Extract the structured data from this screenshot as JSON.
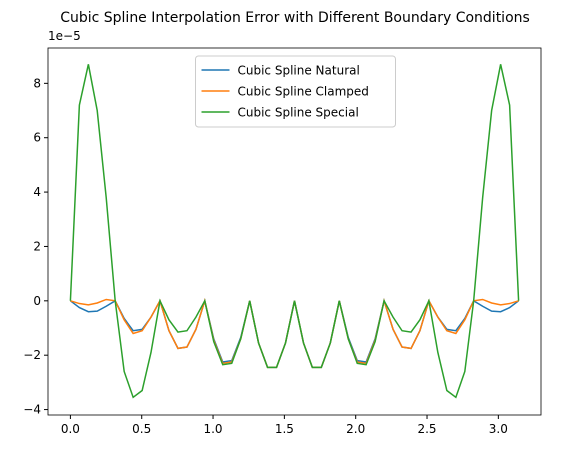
{
  "chart_data": {
    "type": "line",
    "title": "Cubic Spline Interpolation Error with Different Boundary Conditions",
    "y_offset_label": "1e−5",
    "x": [
      0,
      0.063,
      0.126,
      0.188,
      0.251,
      0.314,
      0.377,
      0.44,
      0.503,
      0.565,
      0.628,
      0.691,
      0.754,
      0.817,
      0.88,
      0.942,
      1.005,
      1.068,
      1.131,
      1.194,
      1.257,
      1.319,
      1.382,
      1.445,
      1.508,
      1.571,
      1.634,
      1.696,
      1.759,
      1.822,
      1.885,
      1.948,
      2.011,
      2.073,
      2.136,
      2.199,
      2.262,
      2.325,
      2.388,
      2.45,
      2.513,
      2.576,
      2.639,
      2.702,
      2.765,
      2.827,
      2.89,
      2.953,
      3.016,
      3.079,
      3.142
    ],
    "series": [
      {
        "name": "Cubic Spline Natural",
        "color": "#1f77b4",
        "values": [
          0,
          -0.25,
          -0.4,
          -0.38,
          -0.2,
          0,
          -0.65,
          -1.1,
          -1.05,
          -0.6,
          0,
          -1.1,
          -1.75,
          -1.7,
          -1.05,
          0,
          -1.4,
          -2.25,
          -2.2,
          -1.35,
          0,
          -1.55,
          -2.45,
          -2.45,
          -1.55,
          0,
          -1.55,
          -2.45,
          -2.45,
          -1.55,
          0,
          -1.35,
          -2.2,
          -2.25,
          -1.4,
          0,
          -1.05,
          -1.7,
          -1.75,
          -1.1,
          0,
          -0.6,
          -1.05,
          -1.1,
          -0.65,
          0,
          -0.2,
          -0.38,
          -0.4,
          -0.25,
          0
        ]
      },
      {
        "name": "Cubic Spline Clamped",
        "color": "#ff7f0e",
        "values": [
          0,
          -0.1,
          -0.15,
          -0.08,
          0.05,
          0,
          -0.7,
          -1.2,
          -1.1,
          -0.6,
          0,
          -1.1,
          -1.75,
          -1.7,
          -1.05,
          0,
          -1.45,
          -2.3,
          -2.25,
          -1.4,
          0,
          -1.55,
          -2.45,
          -2.45,
          -1.55,
          0,
          -1.55,
          -2.45,
          -2.45,
          -1.55,
          0,
          -1.4,
          -2.25,
          -2.3,
          -1.45,
          0,
          -1.05,
          -1.7,
          -1.75,
          -1.1,
          0,
          -0.6,
          -1.1,
          -1.2,
          -0.7,
          0,
          0.05,
          -0.08,
          -0.15,
          -0.1,
          0
        ]
      },
      {
        "name": "Cubic Spline Special",
        "color": "#2ca02c",
        "values": [
          0,
          7.2,
          8.7,
          7.0,
          3.8,
          0,
          -2.6,
          -3.55,
          -3.3,
          -1.9,
          0,
          -0.7,
          -1.15,
          -1.1,
          -0.6,
          0,
          -1.5,
          -2.35,
          -2.3,
          -1.4,
          0,
          -1.55,
          -2.45,
          -2.45,
          -1.55,
          0,
          -1.55,
          -2.45,
          -2.45,
          -1.55,
          0,
          -1.4,
          -2.3,
          -2.35,
          -1.5,
          0,
          -0.6,
          -1.1,
          -1.15,
          -0.7,
          0,
          -1.9,
          -3.3,
          -3.55,
          -2.6,
          0,
          3.8,
          7.0,
          8.7,
          7.2,
          0
        ]
      }
    ],
    "xlim": [
      -0.157,
      3.299
    ],
    "xticks": [
      {
        "value": 0,
        "label": "0.0"
      },
      {
        "value": 0.5,
        "label": "0.5"
      },
      {
        "value": 1,
        "label": "1.0"
      },
      {
        "value": 1.5,
        "label": "1.5"
      },
      {
        "value": 2,
        "label": "2.0"
      },
      {
        "value": 2.5,
        "label": "2.5"
      },
      {
        "value": 3,
        "label": "3.0"
      }
    ],
    "ylim": [
      -4.2,
      9.3
    ],
    "yticks": [
      {
        "value": -4,
        "label": "−4"
      },
      {
        "value": -2,
        "label": "−2"
      },
      0,
      2,
      4,
      6,
      8
    ],
    "legend": "upper center"
  }
}
